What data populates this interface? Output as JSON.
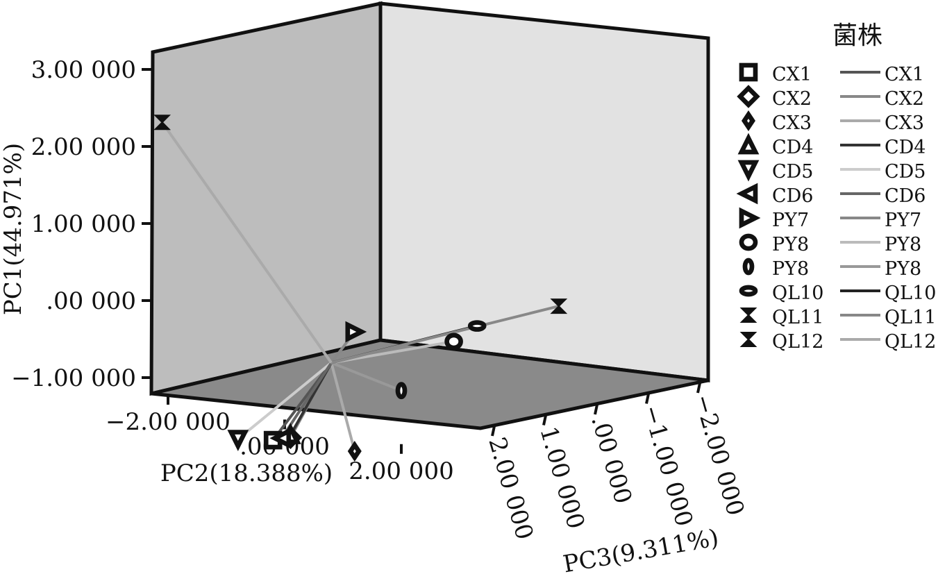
{
  "chart_data": {
    "type": "scatter",
    "projection": "3d",
    "axes": {
      "vertical": {
        "label": "PC1(44.971%)",
        "tick_labels": [
          "3.00 000",
          "2.00 000",
          "1.00 000",
          ".00 000",
          "−1.00 000"
        ],
        "tick_values": [
          3,
          2,
          1,
          0,
          -1
        ]
      },
      "x": {
        "label": "PC2(18.388%)",
        "tick_labels": [
          "−2.00 000",
          ".00 000",
          "2.00 000"
        ],
        "tick_values": [
          -2,
          0,
          2
        ]
      },
      "depth": {
        "label": "PC3(9.311%)",
        "tick_labels": [
          "2.00 000",
          "1.00 000",
          ".00 000",
          "−1.00 000",
          "−2.00 000"
        ],
        "tick_values": [
          2,
          1,
          0,
          -1,
          -2
        ]
      }
    },
    "legend_title": "菌株",
    "legend_position": "right",
    "centroid": {
      "pc2": 1.0,
      "pc3": 0.2,
      "pc1": 0.2
    },
    "series": [
      {
        "name": "CX1",
        "marker": "square",
        "line_color": "#555555",
        "pc2": 0.8,
        "pc3": 1.0,
        "pc1": -0.7
      },
      {
        "name": "CX2",
        "marker": "diamond",
        "line_color": "#888888",
        "pc2": 1.0,
        "pc3": 0.9,
        "pc1": -0.65
      },
      {
        "name": "CX3",
        "marker": "small-diamond",
        "line_color": "#aaaaaa",
        "pc2": 1.8,
        "pc3": 0.6,
        "pc1": -0.75
      },
      {
        "name": "CD4",
        "marker": "triangle-up",
        "line_color": "#333333",
        "pc2": 1.05,
        "pc3": 0.95,
        "pc1": -0.6
      },
      {
        "name": "CD5",
        "marker": "triangle-down",
        "line_color": "#cccccc",
        "pc2": 0.3,
        "pc3": 1.1,
        "pc1": -0.75
      },
      {
        "name": "CD6",
        "marker": "triangle-left",
        "line_color": "#666666",
        "pc2": 0.95,
        "pc3": 1.0,
        "pc1": -0.65
      },
      {
        "name": "PY7",
        "marker": "triangle-right",
        "line_color": "#888888",
        "pc2": 1.2,
        "pc3": 0.0,
        "pc1": 0.6
      },
      {
        "name": "PY8",
        "marker": "circle",
        "line_color": "#bbbbbb",
        "pc2": 2.3,
        "pc3": -0.6,
        "pc1": 0.55
      },
      {
        "name": "PY8",
        "marker": "small-ellipse",
        "line_color": "#999999",
        "pc2": 2.1,
        "pc3": 0.1,
        "pc1": 0.0
      },
      {
        "name": "QL10",
        "marker": "flat-ellipse",
        "line_color": "#222222",
        "pc2": 2.5,
        "pc3": -0.8,
        "pc1": 0.75
      },
      {
        "name": "QL11",
        "marker": "bowtie-h",
        "line_color": "#888888",
        "pc2": 3.2,
        "pc3": -1.5,
        "pc1": 1.0
      },
      {
        "name": "QL12",
        "marker": "bowtie-v",
        "line_color": "#aaaaaa",
        "pc2": -1.6,
        "pc3": 0.5,
        "pc1": 2.95
      }
    ]
  }
}
